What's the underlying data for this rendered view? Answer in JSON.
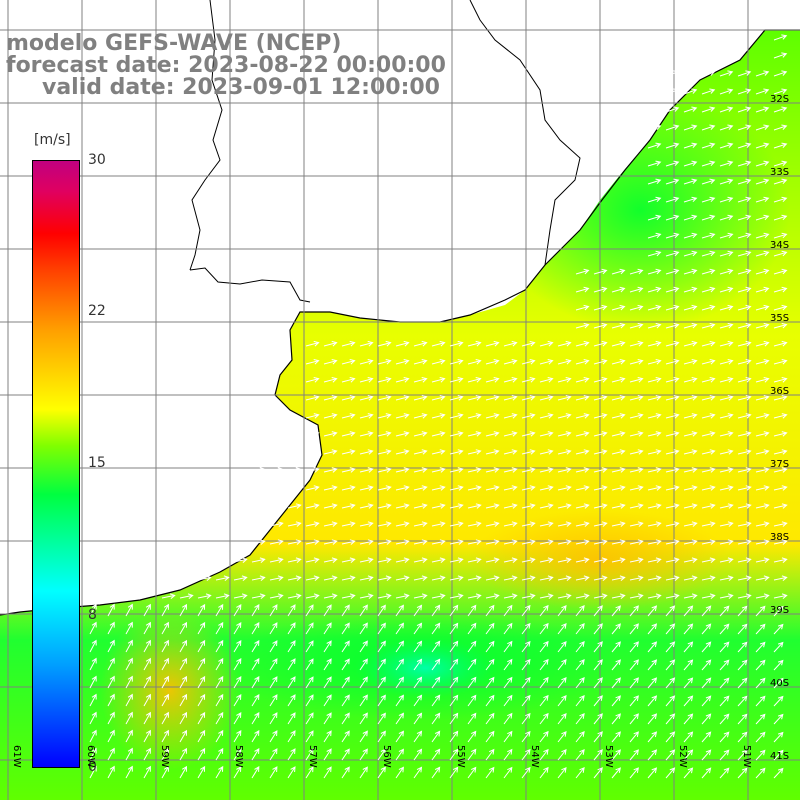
{
  "title": {
    "line1": "modelo GEFS-WAVE (NCEP)",
    "line2": "forecast date: 2023-08-22 00:00:00",
    "line3": "valid date: 2023-09-01 12:00:00"
  },
  "colorbar": {
    "unit": "[m/s]",
    "ticks": [
      "30",
      "22",
      "15",
      "8",
      "0"
    ],
    "colors": [
      "#0000ff",
      "#00a0ff",
      "#00ffff",
      "#00ff40",
      "#80ff00",
      "#ffff00",
      "#ffa000",
      "#ff4000",
      "#ff0000",
      "#c00080"
    ]
  },
  "axes": {
    "lat_labels": [
      "32S",
      "33S",
      "34S",
      "35S",
      "36S",
      "37S",
      "38S",
      "39S",
      "40S",
      "41S"
    ],
    "lon_labels": [
      "61W",
      "60W",
      "59W",
      "58W",
      "57W",
      "56W",
      "55W",
      "54W",
      "53W",
      "52W",
      "51W"
    ]
  },
  "map_layers": {
    "land_color": "#ffffff",
    "coastline_color": "#000000",
    "grid_color": "#808080",
    "arrow_color": "#ffffff"
  }
}
